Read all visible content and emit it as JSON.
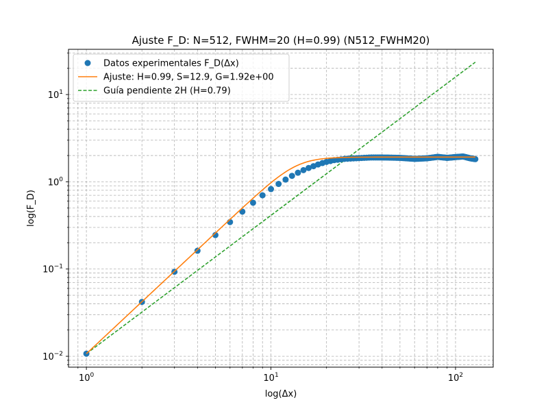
{
  "chart_data": {
    "type": "line",
    "title": "Ajuste F_D: N=512, FWHM=20 (H=0.99) (N512_FWHM20)",
    "xlabel": "log(Δx)",
    "ylabel": "log(F_D)",
    "xscale": "log",
    "yscale": "log",
    "xlim": [
      0.8,
      160
    ],
    "ylim": [
      0.0075,
      33
    ],
    "grid": true,
    "legend_position": "top-left",
    "x_ticks": [
      {
        "value": 1,
        "label": "10",
        "sup": "0"
      },
      {
        "value": 10,
        "label": "10",
        "sup": "1"
      },
      {
        "value": 100,
        "label": "10",
        "sup": "2"
      }
    ],
    "y_ticks": [
      {
        "value": 0.01,
        "label": "10",
        "sup": "−2"
      },
      {
        "value": 0.1,
        "label": "10",
        "sup": "−1"
      },
      {
        "value": 1,
        "label": "10",
        "sup": "0"
      },
      {
        "value": 10,
        "label": "10",
        "sup": "1"
      }
    ],
    "series": [
      {
        "name": "Datos experimentales F_D(Δx)",
        "kind": "scatter",
        "color": "#1f77b4",
        "x_start": 1,
        "x_end": 128,
        "x_step": 1,
        "anchors": [
          [
            1,
            0.0107
          ],
          [
            2,
            0.042
          ],
          [
            3,
            0.093
          ],
          [
            4,
            0.162
          ],
          [
            5,
            0.245
          ],
          [
            6,
            0.345
          ],
          [
            7,
            0.455
          ],
          [
            8,
            0.575
          ],
          [
            9,
            0.7
          ],
          [
            10,
            0.825
          ],
          [
            11,
            0.945
          ],
          [
            12,
            1.06
          ],
          [
            13,
            1.17
          ],
          [
            14,
            1.27
          ],
          [
            15,
            1.36
          ],
          [
            16,
            1.44
          ],
          [
            17,
            1.51
          ],
          [
            18,
            1.58
          ],
          [
            19,
            1.64
          ],
          [
            20,
            1.69
          ],
          [
            22,
            1.77
          ],
          [
            25,
            1.83
          ],
          [
            30,
            1.87
          ],
          [
            35,
            1.9
          ],
          [
            40,
            1.9
          ],
          [
            50,
            1.88
          ],
          [
            60,
            1.83
          ],
          [
            70,
            1.86
          ],
          [
            80,
            1.93
          ],
          [
            90,
            1.88
          ],
          [
            100,
            1.92
          ],
          [
            110,
            1.95
          ],
          [
            120,
            1.86
          ],
          [
            128,
            1.82
          ]
        ]
      },
      {
        "name": "Ajuste: H=0.99, S=12.9, G=1.92e+00",
        "kind": "line",
        "color": "#ff7f0e",
        "model": "saturation",
        "H": 0.99,
        "S": 12.9,
        "G": 1.92,
        "x_range": [
          1,
          128
        ]
      },
      {
        "name": "Guía pendiente 2H (H=0.79)",
        "kind": "dashed-line",
        "color": "#2ca02c",
        "points": [
          [
            1,
            0.0107
          ],
          [
            128,
            23.5
          ]
        ]
      }
    ]
  }
}
